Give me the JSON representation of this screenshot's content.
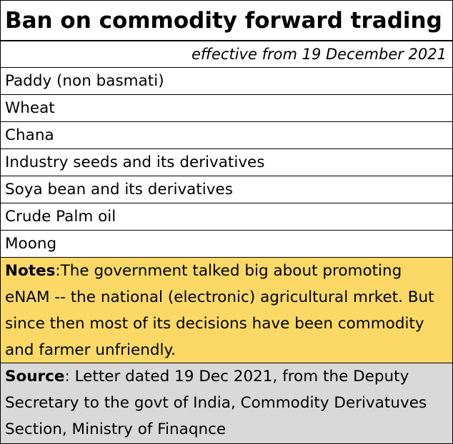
{
  "title": "Ban on commodity forward trading",
  "subtitle": "effective from 19 December 2021",
  "items": [
    "Paddy (non basmati)",
    "Wheat",
    "Chana",
    "Industry seeds and its derivatives",
    "Soya bean and its derivatives",
    "Crude Palm oil",
    "Moong"
  ],
  "notes": {
    "label": "Notes",
    "text": ":The government talked big about promoting eNAM -- the national (electronic) agricultural mrket. But since then most of its decisions have been commodity and farmer unfriendly."
  },
  "source": {
    "label": "Source",
    "text": ": Letter dated 19 Dec 2021, from the Deputy Secretary  to the govt of India, Commodity Derivatuves Section, Ministry of Finaqnce"
  },
  "colors": {
    "notes_background": "#fcd967",
    "source_background": "#d9d9d9"
  }
}
